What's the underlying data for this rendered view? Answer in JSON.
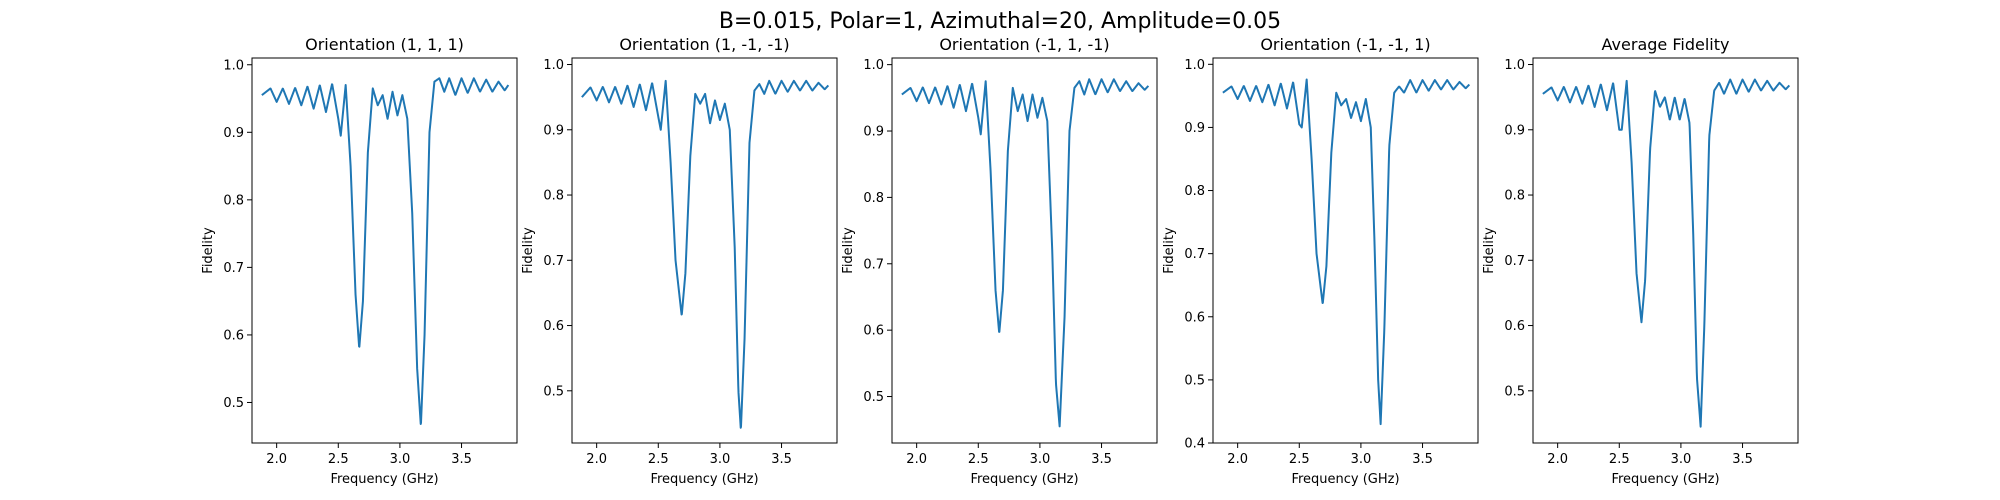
{
  "suptitle": "B=0.015, Polar=1, Azimuthal=20, Amplitude=0.05",
  "line_color": "#1f77b4",
  "chart_data": [
    {
      "type": "line",
      "title": "Orientation (1, 1, 1)",
      "xlabel": "Frequency (GHz)",
      "ylabel": "Fidelity",
      "xlim": [
        1.8,
        3.95
      ],
      "ylim": [
        0.44,
        1.01
      ],
      "xticks": [
        2.0,
        2.5,
        3.0,
        3.5
      ],
      "yticks": [
        0.5,
        0.6,
        0.7,
        0.8,
        0.9,
        1.0
      ],
      "dips": [
        {
          "center": 2.67,
          "depth": 0.37
        },
        {
          "center": 3.17,
          "depth": 0.49
        }
      ],
      "series": [
        {
          "x": [
            1.88,
            1.95,
            2.0,
            2.05,
            2.1,
            2.15,
            2.2,
            2.25,
            2.3,
            2.35,
            2.4,
            2.45,
            2.5,
            2.52,
            2.56,
            2.6,
            2.64,
            2.67,
            2.7,
            2.74,
            2.78,
            2.82,
            2.86,
            2.9,
            2.94,
            2.98,
            3.02,
            3.06,
            3.1,
            3.14,
            3.17,
            3.2,
            3.24,
            3.28,
            3.32,
            3.36,
            3.4,
            3.45,
            3.5,
            3.55,
            3.6,
            3.65,
            3.7,
            3.75,
            3.8,
            3.85,
            3.88
          ],
          "y": [
            0.955,
            0.965,
            0.945,
            0.965,
            0.942,
            0.966,
            0.94,
            0.968,
            0.935,
            0.97,
            0.93,
            0.972,
            0.92,
            0.895,
            0.97,
            0.85,
            0.66,
            0.58,
            0.65,
            0.87,
            0.965,
            0.94,
            0.955,
            0.92,
            0.96,
            0.925,
            0.955,
            0.92,
            0.78,
            0.55,
            0.465,
            0.6,
            0.9,
            0.975,
            0.98,
            0.96,
            0.98,
            0.955,
            0.98,
            0.958,
            0.98,
            0.96,
            0.978,
            0.96,
            0.975,
            0.962,
            0.97
          ]
        }
      ]
    },
    {
      "type": "line",
      "title": "Orientation (1, -1, -1)",
      "xlabel": "Frequency (GHz)",
      "ylabel": "Fidelity",
      "xlim": [
        1.8,
        3.95
      ],
      "ylim": [
        0.42,
        1.01
      ],
      "xticks": [
        2.0,
        2.5,
        3.0,
        3.5
      ],
      "yticks": [
        0.5,
        0.6,
        0.7,
        0.8,
        0.9,
        1.0
      ],
      "dips": [
        {
          "center": 2.69,
          "depth": 0.34
        },
        {
          "center": 3.17,
          "depth": 0.51
        }
      ],
      "series": [
        {
          "x": [
            1.88,
            1.95,
            2.0,
            2.05,
            2.1,
            2.15,
            2.2,
            2.25,
            2.3,
            2.35,
            2.4,
            2.45,
            2.5,
            2.52,
            2.56,
            2.6,
            2.64,
            2.69,
            2.72,
            2.76,
            2.8,
            2.84,
            2.88,
            2.92,
            2.96,
            3.0,
            3.04,
            3.08,
            3.12,
            3.15,
            3.17,
            3.2,
            3.24,
            3.28,
            3.32,
            3.36,
            3.4,
            3.45,
            3.5,
            3.55,
            3.6,
            3.65,
            3.7,
            3.75,
            3.8,
            3.85,
            3.88
          ],
          "y": [
            0.95,
            0.965,
            0.945,
            0.966,
            0.942,
            0.966,
            0.94,
            0.968,
            0.935,
            0.97,
            0.93,
            0.972,
            0.92,
            0.9,
            0.975,
            0.85,
            0.7,
            0.615,
            0.68,
            0.86,
            0.955,
            0.94,
            0.955,
            0.91,
            0.945,
            0.915,
            0.94,
            0.9,
            0.72,
            0.5,
            0.44,
            0.58,
            0.88,
            0.96,
            0.97,
            0.955,
            0.975,
            0.955,
            0.975,
            0.958,
            0.975,
            0.96,
            0.975,
            0.96,
            0.972,
            0.962,
            0.968
          ]
        }
      ]
    },
    {
      "type": "line",
      "title": "Orientation (-1, 1, -1)",
      "xlabel": "Frequency (GHz)",
      "ylabel": "Fidelity",
      "xlim": [
        1.8,
        3.95
      ],
      "ylim": [
        0.43,
        1.01
      ],
      "xticks": [
        2.0,
        2.5,
        3.0,
        3.5
      ],
      "yticks": [
        0.5,
        0.6,
        0.7,
        0.8,
        0.9,
        1.0
      ],
      "dips": [
        {
          "center": 2.67,
          "depth": 0.37
        },
        {
          "center": 3.16,
          "depth": 0.5
        }
      ],
      "series": [
        {
          "x": [
            1.88,
            1.95,
            2.0,
            2.05,
            2.1,
            2.15,
            2.2,
            2.25,
            2.3,
            2.35,
            2.4,
            2.45,
            2.5,
            2.52,
            2.56,
            2.6,
            2.64,
            2.67,
            2.7,
            2.74,
            2.78,
            2.82,
            2.86,
            2.9,
            2.94,
            2.98,
            3.02,
            3.06,
            3.1,
            3.13,
            3.16,
            3.2,
            3.24,
            3.28,
            3.32,
            3.36,
            3.4,
            3.45,
            3.5,
            3.55,
            3.6,
            3.65,
            3.7,
            3.75,
            3.8,
            3.85,
            3.88
          ],
          "y": [
            0.955,
            0.965,
            0.945,
            0.966,
            0.942,
            0.966,
            0.94,
            0.968,
            0.935,
            0.97,
            0.93,
            0.972,
            0.92,
            0.895,
            0.975,
            0.84,
            0.66,
            0.595,
            0.66,
            0.87,
            0.965,
            0.93,
            0.955,
            0.915,
            0.955,
            0.92,
            0.95,
            0.915,
            0.72,
            0.52,
            0.455,
            0.62,
            0.9,
            0.965,
            0.975,
            0.955,
            0.978,
            0.955,
            0.978,
            0.958,
            0.978,
            0.96,
            0.975,
            0.96,
            0.972,
            0.962,
            0.968
          ]
        }
      ]
    },
    {
      "type": "line",
      "title": "Orientation (-1, -1, 1)",
      "xlabel": "Frequency (GHz)",
      "ylabel": "Fidelity",
      "xlim": [
        1.8,
        3.95
      ],
      "ylim": [
        0.4,
        1.01
      ],
      "xticks": [
        2.0,
        2.5,
        3.0,
        3.5
      ],
      "yticks": [
        0.4,
        0.5,
        0.6,
        0.7,
        0.8,
        0.9,
        1.0
      ],
      "dips": [
        {
          "center": 2.69,
          "depth": 0.34
        },
        {
          "center": 3.16,
          "depth": 0.54
        }
      ],
      "series": [
        {
          "x": [
            1.88,
            1.95,
            2.0,
            2.05,
            2.1,
            2.15,
            2.2,
            2.25,
            2.3,
            2.35,
            2.4,
            2.45,
            2.5,
            2.52,
            2.56,
            2.6,
            2.64,
            2.69,
            2.72,
            2.76,
            2.8,
            2.84,
            2.88,
            2.92,
            2.96,
            3.0,
            3.04,
            3.08,
            3.11,
            3.14,
            3.16,
            3.19,
            3.23,
            3.27,
            3.31,
            3.35,
            3.4,
            3.45,
            3.5,
            3.55,
            3.6,
            3.65,
            3.7,
            3.75,
            3.8,
            3.85,
            3.88
          ],
          "y": [
            0.955,
            0.965,
            0.945,
            0.966,
            0.942,
            0.966,
            0.94,
            0.968,
            0.935,
            0.97,
            0.93,
            0.972,
            0.905,
            0.9,
            0.976,
            0.85,
            0.7,
            0.62,
            0.68,
            0.86,
            0.955,
            0.935,
            0.945,
            0.915,
            0.94,
            0.91,
            0.945,
            0.9,
            0.72,
            0.5,
            0.43,
            0.58,
            0.87,
            0.955,
            0.965,
            0.955,
            0.975,
            0.955,
            0.975,
            0.958,
            0.975,
            0.96,
            0.975,
            0.96,
            0.972,
            0.962,
            0.968
          ]
        }
      ]
    },
    {
      "type": "line",
      "title": "Average Fidelity",
      "xlabel": "Frequency (GHz)",
      "ylabel": "Fidelity",
      "xlim": [
        1.8,
        3.95
      ],
      "ylim": [
        0.42,
        1.01
      ],
      "xticks": [
        2.0,
        2.5,
        3.0,
        3.5
      ],
      "yticks": [
        0.5,
        0.6,
        0.7,
        0.8,
        0.9,
        1.0
      ],
      "dips": [
        {
          "center": 2.68,
          "depth": 0.35
        },
        {
          "center": 3.16,
          "depth": 0.51
        }
      ],
      "series": [
        {
          "x": [
            1.88,
            1.95,
            2.0,
            2.05,
            2.1,
            2.15,
            2.2,
            2.25,
            2.3,
            2.35,
            2.4,
            2.45,
            2.5,
            2.52,
            2.56,
            2.6,
            2.64,
            2.68,
            2.71,
            2.75,
            2.79,
            2.83,
            2.87,
            2.91,
            2.95,
            2.99,
            3.03,
            3.07,
            3.1,
            3.13,
            3.16,
            3.19,
            3.23,
            3.27,
            3.31,
            3.35,
            3.4,
            3.45,
            3.5,
            3.55,
            3.6,
            3.65,
            3.7,
            3.75,
            3.8,
            3.85,
            3.88
          ],
          "y": [
            0.955,
            0.965,
            0.945,
            0.966,
            0.942,
            0.966,
            0.94,
            0.968,
            0.935,
            0.97,
            0.93,
            0.972,
            0.9,
            0.9,
            0.975,
            0.85,
            0.68,
            0.605,
            0.67,
            0.87,
            0.96,
            0.935,
            0.95,
            0.915,
            0.95,
            0.915,
            0.948,
            0.91,
            0.74,
            0.52,
            0.445,
            0.6,
            0.89,
            0.96,
            0.972,
            0.955,
            0.977,
            0.955,
            0.977,
            0.958,
            0.977,
            0.96,
            0.975,
            0.96,
            0.972,
            0.962,
            0.968
          ]
        }
      ]
    }
  ]
}
